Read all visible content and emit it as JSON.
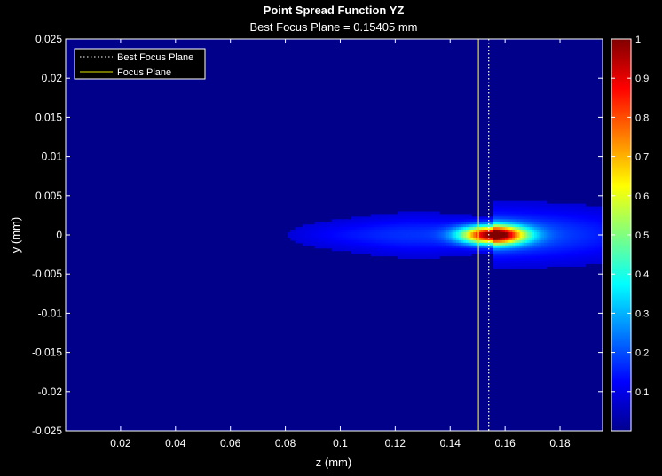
{
  "chart_data": {
    "type": "heatmap",
    "title": "Point Spread Function YZ",
    "subtitle": "Best Focus Plane = 0.15405 mm",
    "xlabel": "z (mm)",
    "ylabel": "y (mm)",
    "xlim": [
      0,
      0.1955
    ],
    "ylim": [
      -0.025,
      0.025
    ],
    "x_ticks": [
      0.02,
      0.04,
      0.06,
      0.08,
      0.1,
      0.12,
      0.14,
      0.16,
      0.18
    ],
    "x_tick_labels": [
      "0.02",
      "0.04",
      "0.06",
      "0.08",
      "0.1",
      "0.12",
      "0.14",
      "0.16",
      "0.18"
    ],
    "y_ticks": [
      -0.025,
      -0.02,
      -0.015,
      -0.01,
      -0.005,
      0,
      0.005,
      0.01,
      0.015,
      0.02,
      0.025
    ],
    "y_tick_labels": [
      "-0.025",
      "-0.02",
      "-0.015",
      "-0.01",
      "-0.005",
      "0",
      "0.005",
      "0.01",
      "0.015",
      "0.02",
      "0.025"
    ],
    "colormap": "jet",
    "colorbar": {
      "range": [
        0,
        1
      ],
      "ticks": [
        0.1,
        0.2,
        0.3,
        0.4,
        0.5,
        0.6,
        0.7,
        0.8,
        0.9,
        1
      ],
      "tick_labels": [
        "0.1",
        "0.2",
        "0.3",
        "0.4",
        "0.5",
        "0.6",
        "0.7",
        "0.8",
        "0.9",
        "1"
      ]
    },
    "peak": {
      "z": 0.1555,
      "y": 0,
      "value": 1
    },
    "best_focus_z": 0.15405,
    "focus_z": 0.1503,
    "lines": [
      {
        "name": "Best Focus Plane",
        "z": 0.15405,
        "style": "dotted",
        "color": "#ffffff"
      },
      {
        "name": "Focus Plane",
        "z": 0.1503,
        "style": "solid",
        "color": "#e6e600"
      }
    ],
    "legend_position": "top-left",
    "grid": false
  }
}
